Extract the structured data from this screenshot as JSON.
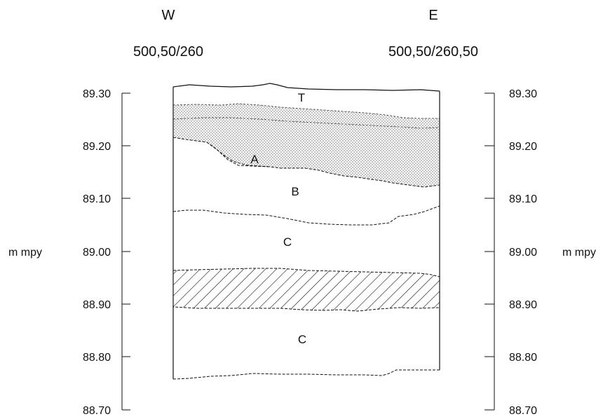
{
  "header": {
    "west_direction": "W",
    "east_direction": "E",
    "west_coordinate": "500,50/260",
    "east_coordinate": "500,50/260,50"
  },
  "scale": {
    "unit": "m mpy",
    "ticks": [
      "89.30",
      "89.20",
      "89.10",
      "89.00",
      "88.90",
      "88.80",
      "88.70"
    ]
  },
  "layers": {
    "topsoil": "T",
    "a": "A",
    "b": "B",
    "c_upper": "C",
    "c_lower": "C"
  },
  "colors": {
    "line": "#111111",
    "stipple": "#8c8c8c"
  }
}
